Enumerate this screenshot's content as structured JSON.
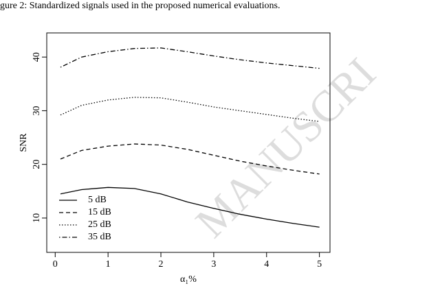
{
  "caption": "gure 2: Standardized signals used in the proposed numerical evaluations.",
  "watermark": "MANUSCRI",
  "chart_data": {
    "type": "line",
    "xlabel": "α₁%",
    "ylabel": "SNR",
    "x": [
      0.1,
      0.5,
      1,
      1.5,
      2,
      2.5,
      3,
      3.5,
      4,
      4.5,
      5
    ],
    "series": [
      {
        "name": "5 dB",
        "color": "#000000",
        "linestyle": "solid",
        "values": [
          14.5,
          15.3,
          15.7,
          15.5,
          14.5,
          13.0,
          11.8,
          10.7,
          9.8,
          9.0,
          8.3
        ]
      },
      {
        "name": "15 dB",
        "color": "#000000",
        "linestyle": "dashed",
        "values": [
          21.0,
          22.6,
          23.4,
          23.8,
          23.6,
          22.8,
          21.7,
          20.6,
          19.7,
          18.9,
          18.2
        ]
      },
      {
        "name": "25 dB",
        "color": "#000000",
        "linestyle": "dotted",
        "values": [
          29.2,
          31.0,
          32.0,
          32.5,
          32.4,
          31.6,
          30.7,
          30.0,
          29.3,
          28.6,
          28.0
        ]
      },
      {
        "name": "35 dB",
        "color": "#000000",
        "linestyle": "dotdash",
        "values": [
          38.1,
          40.0,
          41.0,
          41.6,
          41.7,
          41.0,
          40.2,
          39.5,
          38.9,
          38.4,
          37.9
        ]
      }
    ],
    "xlim": [
      -0.16,
      5.2
    ],
    "ylim": [
      3.6,
      44.5
    ],
    "xticks": [
      0,
      1,
      2,
      3,
      4,
      5
    ],
    "yticks": [
      10,
      20,
      30,
      40
    ],
    "legend": "bottom-left",
    "grid": false
  }
}
